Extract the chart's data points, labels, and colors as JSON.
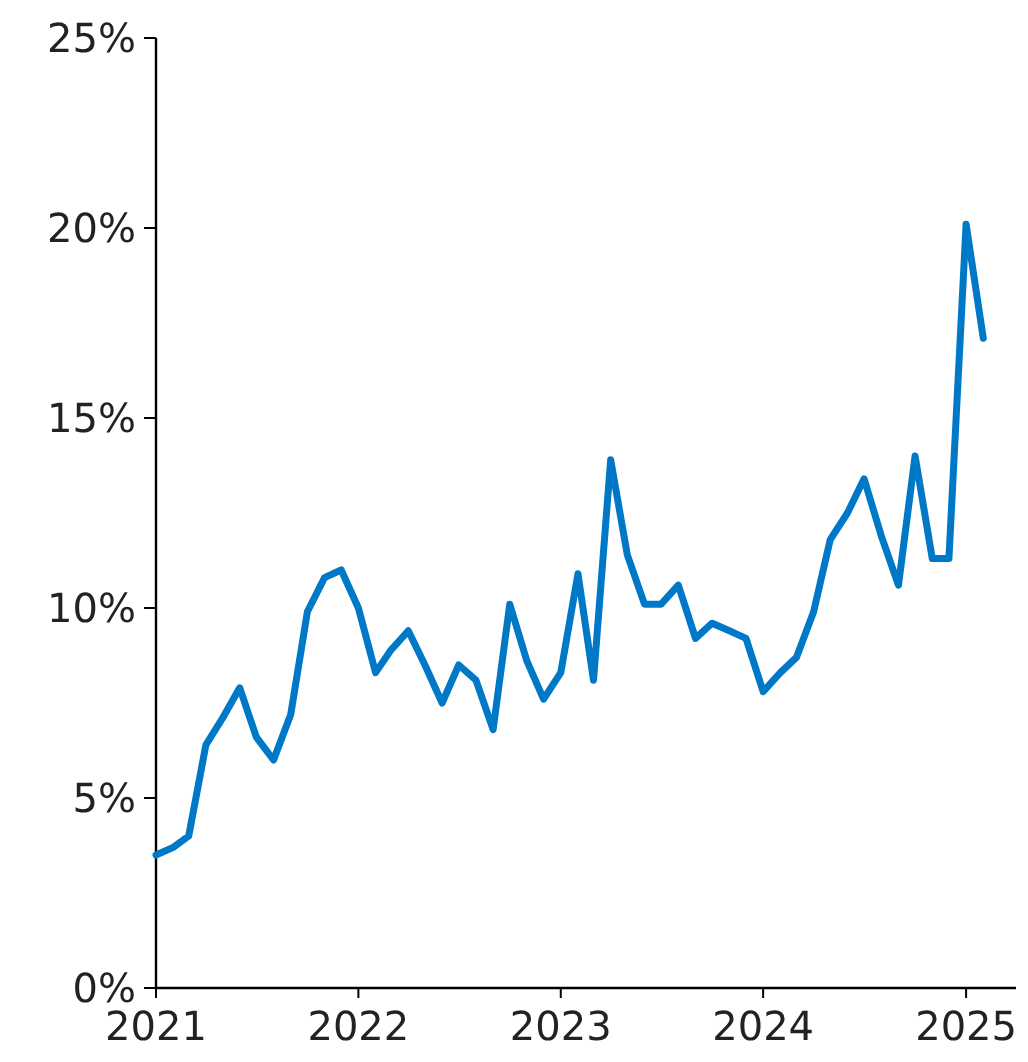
{
  "chart_data": {
    "type": "line",
    "x": [
      "2021-01",
      "2021-02",
      "2021-03",
      "2021-04",
      "2021-05",
      "2021-06",
      "2021-07",
      "2021-08",
      "2021-09",
      "2021-10",
      "2021-11",
      "2021-12",
      "2022-01",
      "2022-02",
      "2022-03",
      "2022-04",
      "2022-05",
      "2022-06",
      "2022-07",
      "2022-08",
      "2022-09",
      "2022-10",
      "2022-11",
      "2022-12",
      "2023-01",
      "2023-02",
      "2023-03",
      "2023-04",
      "2023-05",
      "2023-06",
      "2023-07",
      "2023-08",
      "2023-09",
      "2023-10",
      "2023-11",
      "2023-12",
      "2024-01",
      "2024-02",
      "2024-03",
      "2024-04",
      "2024-05",
      "2024-06",
      "2024-07",
      "2024-08",
      "2024-09",
      "2024-10",
      "2024-11",
      "2024-12",
      "2025-01",
      "2025-02"
    ],
    "series": [
      {
        "color": "#0078c8",
        "values": [
          3.5,
          3.7,
          4.0,
          6.4,
          7.1,
          7.9,
          6.6,
          6.0,
          7.2,
          9.9,
          10.8,
          11.0,
          10.0,
          8.3,
          8.9,
          9.4,
          8.5,
          7.5,
          8.5,
          8.1,
          6.8,
          10.1,
          8.6,
          7.6,
          8.3,
          10.9,
          8.1,
          13.9,
          11.4,
          10.1,
          10.1,
          10.6,
          9.2,
          9.6,
          9.4,
          9.2,
          7.8,
          8.3,
          8.7,
          9.9,
          11.8,
          12.5,
          13.4,
          11.9,
          10.6,
          14.0,
          11.3,
          11.3,
          20.1,
          17.1
        ]
      }
    ],
    "xlim": [
      "2021-01",
      "2025-04"
    ],
    "xticks": [
      {
        "value": "2021-01",
        "label": "2021"
      },
      {
        "value": "2022-01",
        "label": "2022"
      },
      {
        "value": "2023-01",
        "label": "2023"
      },
      {
        "value": "2024-01",
        "label": "2024"
      },
      {
        "value": "2025-01",
        "label": "2025"
      }
    ],
    "ylim": [
      0,
      25
    ],
    "yticks": [
      {
        "value": 0,
        "label": "0%"
      },
      {
        "value": 5,
        "label": "5%"
      },
      {
        "value": 10,
        "label": "10%"
      },
      {
        "value": 15,
        "label": "15%"
      },
      {
        "value": 20,
        "label": "20%"
      },
      {
        "value": 25,
        "label": "25%"
      }
    ],
    "grid": false,
    "marker": "none",
    "line_style": "solid"
  }
}
